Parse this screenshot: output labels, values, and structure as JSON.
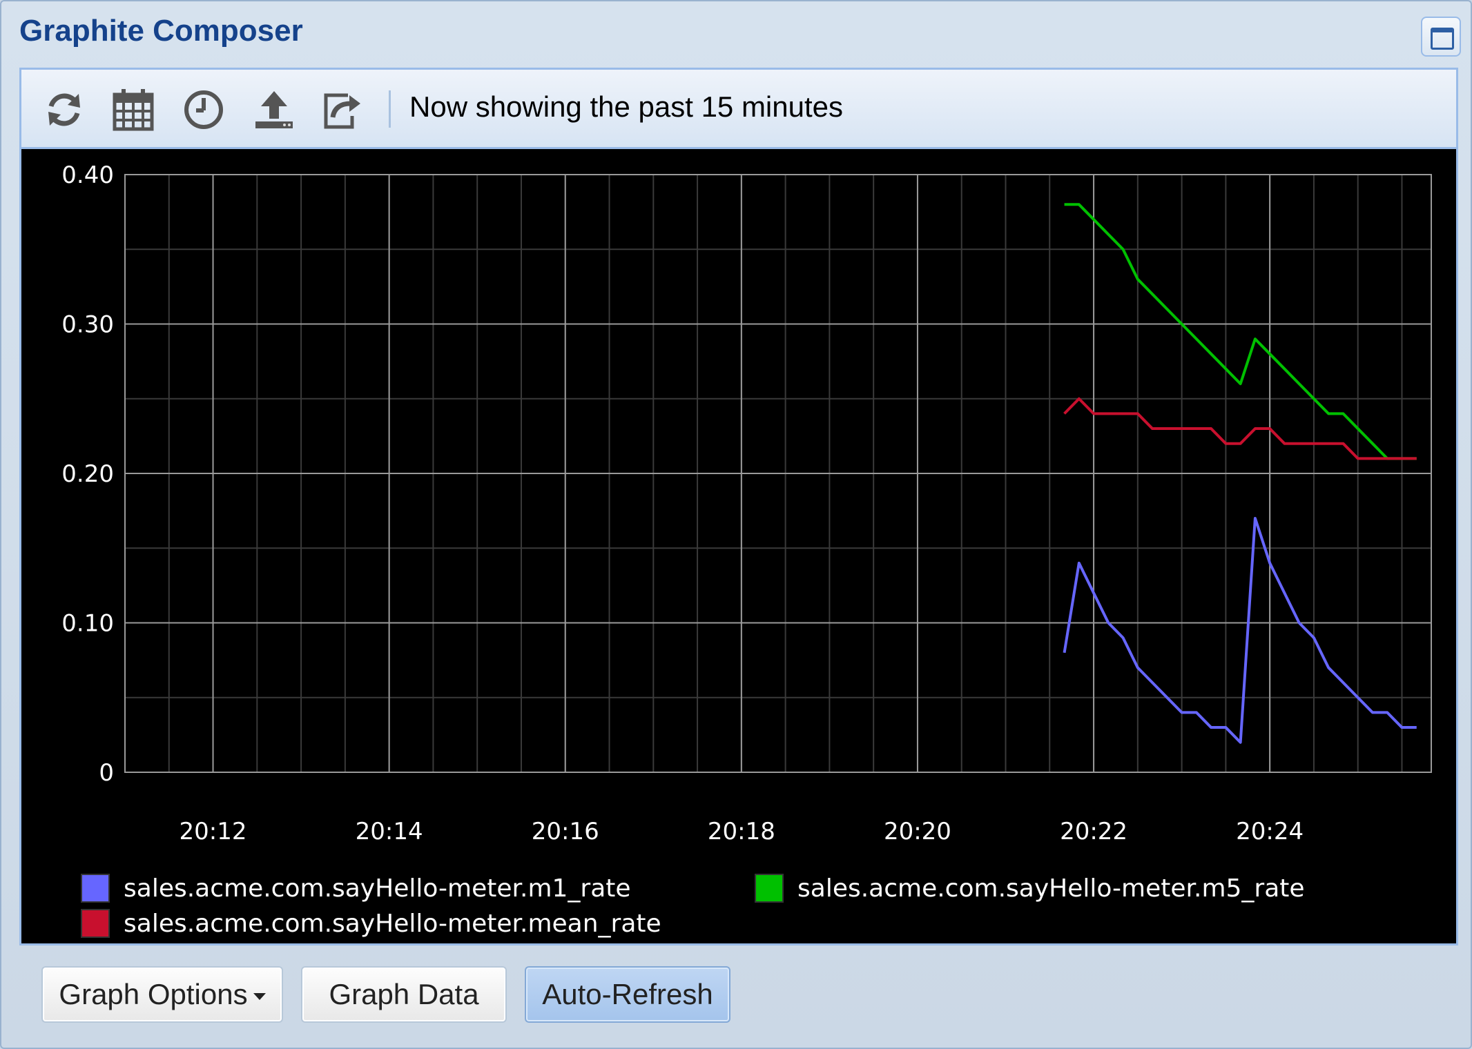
{
  "window": {
    "title": "Graphite Composer",
    "maximize_icon": "maximize-icon"
  },
  "toolbar": {
    "icons": [
      "refresh-icon",
      "calendar-icon",
      "clock-icon",
      "upload-icon",
      "share-icon"
    ],
    "status_text": "Now showing the past 15 minutes"
  },
  "chart_data": {
    "type": "line",
    "x_ticks": [
      "20:12",
      "20:14",
      "20:16",
      "20:18",
      "20:20",
      "20:22",
      "20:24"
    ],
    "y_ticks": [
      "0",
      "0.10",
      "0.20",
      "0.30",
      "0.40"
    ],
    "ylim": [
      0,
      0.4
    ],
    "xlim_minutes": [
      "20:11",
      "20:25:50"
    ],
    "grid": true,
    "legend_position": "bottom",
    "series": [
      {
        "name": "sales.acme.com.sayHello-meter.m1_rate",
        "color": "#6666ff",
        "points": [
          [
            "20:21:40",
            0.08
          ],
          [
            "20:21:50",
            0.14
          ],
          [
            "20:22:00",
            0.12
          ],
          [
            "20:22:10",
            0.1
          ],
          [
            "20:22:20",
            0.09
          ],
          [
            "20:22:30",
            0.07
          ],
          [
            "20:22:40",
            0.06
          ],
          [
            "20:22:50",
            0.05
          ],
          [
            "20:23:00",
            0.04
          ],
          [
            "20:23:10",
            0.04
          ],
          [
            "20:23:20",
            0.03
          ],
          [
            "20:23:30",
            0.03
          ],
          [
            "20:23:40",
            0.02
          ],
          [
            "20:23:50",
            0.17
          ],
          [
            "20:24:00",
            0.14
          ],
          [
            "20:24:10",
            0.12
          ],
          [
            "20:24:20",
            0.1
          ],
          [
            "20:24:30",
            0.09
          ],
          [
            "20:24:40",
            0.07
          ],
          [
            "20:24:50",
            0.06
          ],
          [
            "20:25:00",
            0.05
          ],
          [
            "20:25:10",
            0.04
          ],
          [
            "20:25:20",
            0.04
          ],
          [
            "20:25:30",
            0.03
          ],
          [
            "20:25:40",
            0.03
          ]
        ]
      },
      {
        "name": "sales.acme.com.sayHello-meter.m5_rate",
        "color": "#00c000",
        "points": [
          [
            "20:21:40",
            0.38
          ],
          [
            "20:21:50",
            0.38
          ],
          [
            "20:22:00",
            0.37
          ],
          [
            "20:22:10",
            0.36
          ],
          [
            "20:22:20",
            0.35
          ],
          [
            "20:22:30",
            0.33
          ],
          [
            "20:22:40",
            0.32
          ],
          [
            "20:22:50",
            0.31
          ],
          [
            "20:23:00",
            0.3
          ],
          [
            "20:23:10",
            0.29
          ],
          [
            "20:23:20",
            0.28
          ],
          [
            "20:23:30",
            0.27
          ],
          [
            "20:23:40",
            0.26
          ],
          [
            "20:23:50",
            0.29
          ],
          [
            "20:24:00",
            0.28
          ],
          [
            "20:24:10",
            0.27
          ],
          [
            "20:24:20",
            0.26
          ],
          [
            "20:24:30",
            0.25
          ],
          [
            "20:24:40",
            0.24
          ],
          [
            "20:24:50",
            0.24
          ],
          [
            "20:25:00",
            0.23
          ],
          [
            "20:25:10",
            0.22
          ],
          [
            "20:25:20",
            0.21
          ],
          [
            "20:25:30",
            0.21
          ],
          [
            "20:25:40",
            0.21
          ]
        ]
      },
      {
        "name": "sales.acme.com.sayHello-meter.mean_rate",
        "color": "#c8102e",
        "points": [
          [
            "20:21:40",
            0.24
          ],
          [
            "20:21:50",
            0.25
          ],
          [
            "20:22:00",
            0.24
          ],
          [
            "20:22:10",
            0.24
          ],
          [
            "20:22:20",
            0.24
          ],
          [
            "20:22:30",
            0.24
          ],
          [
            "20:22:40",
            0.23
          ],
          [
            "20:22:50",
            0.23
          ],
          [
            "20:23:00",
            0.23
          ],
          [
            "20:23:10",
            0.23
          ],
          [
            "20:23:20",
            0.23
          ],
          [
            "20:23:30",
            0.22
          ],
          [
            "20:23:40",
            0.22
          ],
          [
            "20:23:50",
            0.23
          ],
          [
            "20:24:00",
            0.23
          ],
          [
            "20:24:10",
            0.22
          ],
          [
            "20:24:20",
            0.22
          ],
          [
            "20:24:30",
            0.22
          ],
          [
            "20:24:40",
            0.22
          ],
          [
            "20:24:50",
            0.22
          ],
          [
            "20:25:00",
            0.21
          ],
          [
            "20:25:10",
            0.21
          ],
          [
            "20:25:20",
            0.21
          ],
          [
            "20:25:30",
            0.21
          ],
          [
            "20:25:40",
            0.21
          ]
        ]
      }
    ]
  },
  "buttons": {
    "graph_options": "Graph Options",
    "graph_data": "Graph Data",
    "auto_refresh": "Auto-Refresh"
  }
}
